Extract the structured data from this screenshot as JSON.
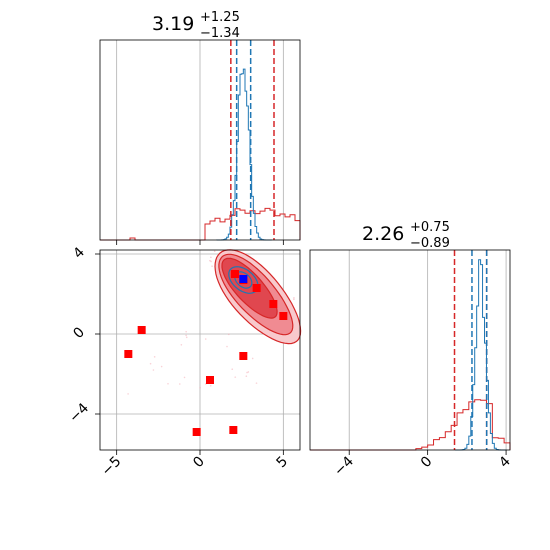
{
  "chart_data": {
    "type": "corner",
    "colors": {
      "red": "#d62728",
      "blue": "#1f77b4",
      "marker_red": "#ff0000",
      "marker_blue": "#0000ff",
      "grid": "#b0b0b0"
    },
    "panels": [
      {
        "id": "hist-param-1",
        "type": "histogram",
        "title": {
          "value": "3.19",
          "plus": "+1.25",
          "minus": "−1.34"
        },
        "xlim": [
          -6,
          6
        ],
        "grid_x": [
          -5,
          0,
          5
        ],
        "xticks": [
          -5,
          0,
          5
        ],
        "show_tick_labels": false,
        "red_lines": [
          1.85,
          4.44
        ],
        "blue_lines": [
          2.2,
          3.04
        ],
        "red_hist": {
          "x0": -6,
          "bin": 0.3,
          "counts": [
            0,
            0,
            0,
            0,
            0,
            0,
            0,
            0,
            0,
            0,
            0,
            0,
            0,
            0,
            0,
            0,
            0,
            0,
            0,
            0,
            0,
            0,
            0,
            0,
            0,
            0,
            0,
            0,
            0,
            0,
            0,
            0,
            0,
            0,
            0,
            0,
            0,
            0,
            0,
            0,
            0,
            0,
            0,
            0,
            0,
            0,
            0,
            0,
            0,
            0,
            0,
            0,
            0,
            0,
            0,
            0,
            0,
            0,
            0,
            0
          ]
        },
        "blue_hist": {
          "x0": -6,
          "bin": 0.15,
          "counts": []
        }
      },
      {
        "id": "hist-param-2",
        "type": "histogram",
        "title": {
          "value": "2.26",
          "plus": "+0.75",
          "minus": "−0.89"
        },
        "xlim": [
          -6,
          4.2
        ],
        "grid_x": [
          -4,
          0,
          4
        ],
        "xticks": [
          -4,
          0,
          4
        ],
        "xtick_labels": [
          "−4",
          "0",
          "4"
        ],
        "red_lines": [
          1.37,
          3.01
        ],
        "blue_lines": [
          2.26,
          3.01
        ]
      },
      {
        "id": "scatter-joint",
        "type": "contour-scatter",
        "xlim": [
          -6,
          6
        ],
        "ylim": [
          -5.8,
          4.2
        ],
        "grid_x": [
          -5,
          0,
          5
        ],
        "grid_y": [
          -4,
          0,
          4
        ],
        "xticks": [
          -5,
          0,
          5
        ],
        "xtick_labels": [
          "−5",
          "0",
          "5"
        ],
        "yticks": [
          -4,
          0,
          4
        ],
        "ytick_labels": [
          "−4",
          "0",
          "4"
        ],
        "red_squares": [
          [
            2.1,
            3.0
          ],
          [
            2.6,
            2.7
          ],
          [
            3.4,
            2.3
          ],
          [
            4.4,
            1.5
          ],
          [
            5.0,
            0.9
          ],
          [
            -3.5,
            0.2
          ],
          [
            -4.3,
            -1.0
          ],
          [
            2.6,
            -1.1
          ],
          [
            0.6,
            -2.3
          ],
          [
            -0.2,
            -4.9
          ],
          [
            2.0,
            -4.8
          ]
        ],
        "blue_square": [
          2.6,
          2.75
        ]
      }
    ]
  }
}
